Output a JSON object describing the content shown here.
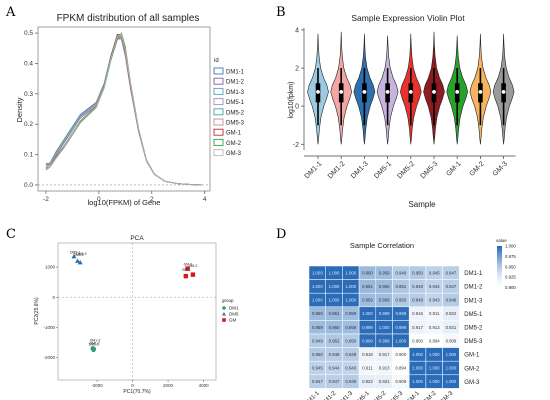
{
  "panels": {
    "a": "A",
    "b": "B",
    "c": "C",
    "d": "D"
  },
  "colors": {
    "DM1-1": "#3b74b4",
    "DM1-2": "#7b5ea7",
    "DM1-3": "#4ea3c9",
    "DM5-1": "#a48ad1",
    "DM5-2": "#3aa7a0",
    "DM5-3": "#c98a9a",
    "GM-1": "#c0282a",
    "GM-2": "#2ea34a",
    "GM-3": "#b8b8b8"
  },
  "chart_data": [
    {
      "type": "line",
      "title": "FPKM distribution of all samples",
      "xlabel": "log10(FPKM) of Gene",
      "ylabel": "Density",
      "xlim": [
        -2.3,
        4.2
      ],
      "ylim": [
        -0.02,
        0.52
      ],
      "xticks": [
        "-2",
        "0",
        "2",
        "4"
      ],
      "yticks": [
        "0.0",
        "0.1",
        "0.2",
        "0.3",
        "0.4",
        "0.5"
      ],
      "legend_title": "id",
      "legend_position": "right",
      "x": [
        -2.0,
        -1.85,
        -1.6,
        -1.3,
        -1.0,
        -0.7,
        -0.4,
        -0.1,
        0.2,
        0.45,
        0.7,
        0.85,
        1.0,
        1.2,
        1.5,
        1.8,
        2.1,
        2.5,
        3.0,
        3.5,
        3.9
      ],
      "series": [
        {
          "name": "DM1-1",
          "values": [
            0.07,
            0.07,
            0.11,
            0.15,
            0.19,
            0.23,
            0.25,
            0.27,
            0.33,
            0.42,
            0.49,
            0.485,
            0.43,
            0.32,
            0.18,
            0.08,
            0.035,
            0.012,
            0.004,
            0.001,
            0.0
          ]
        },
        {
          "name": "DM1-2",
          "values": [
            0.065,
            0.068,
            0.105,
            0.145,
            0.185,
            0.225,
            0.245,
            0.265,
            0.325,
            0.415,
            0.485,
            0.48,
            0.425,
            0.315,
            0.175,
            0.078,
            0.034,
            0.012,
            0.004,
            0.001,
            0.0
          ]
        },
        {
          "name": "DM1-3",
          "values": [
            0.06,
            0.066,
            0.1,
            0.14,
            0.18,
            0.22,
            0.24,
            0.26,
            0.32,
            0.41,
            0.48,
            0.48,
            0.43,
            0.32,
            0.18,
            0.08,
            0.035,
            0.012,
            0.004,
            0.001,
            0.0
          ]
        },
        {
          "name": "DM5-1",
          "values": [
            0.068,
            0.07,
            0.108,
            0.148,
            0.188,
            0.228,
            0.248,
            0.268,
            0.33,
            0.418,
            0.488,
            0.49,
            0.435,
            0.322,
            0.18,
            0.08,
            0.035,
            0.012,
            0.004,
            0.001,
            0.0
          ]
        },
        {
          "name": "DM5-2",
          "values": [
            0.07,
            0.072,
            0.112,
            0.152,
            0.192,
            0.232,
            0.252,
            0.272,
            0.335,
            0.425,
            0.495,
            0.49,
            0.435,
            0.322,
            0.18,
            0.08,
            0.035,
            0.012,
            0.004,
            0.001,
            0.0
          ]
        },
        {
          "name": "DM5-3",
          "values": [
            0.066,
            0.069,
            0.106,
            0.146,
            0.186,
            0.226,
            0.246,
            0.266,
            0.328,
            0.418,
            0.49,
            0.487,
            0.432,
            0.32,
            0.178,
            0.079,
            0.034,
            0.012,
            0.004,
            0.001,
            0.0
          ]
        },
        {
          "name": "GM-1",
          "values": [
            0.055,
            0.06,
            0.095,
            0.13,
            0.17,
            0.21,
            0.235,
            0.26,
            0.325,
            0.42,
            0.495,
            0.495,
            0.44,
            0.325,
            0.18,
            0.08,
            0.035,
            0.012,
            0.004,
            0.001,
            0.0
          ]
        },
        {
          "name": "GM-2",
          "values": [
            0.05,
            0.058,
            0.09,
            0.125,
            0.165,
            0.205,
            0.23,
            0.255,
            0.32,
            0.41,
            0.48,
            0.5,
            0.455,
            0.335,
            0.185,
            0.082,
            0.036,
            0.012,
            0.004,
            0.001,
            0.0
          ]
        },
        {
          "name": "GM-3",
          "values": [
            0.053,
            0.059,
            0.092,
            0.128,
            0.168,
            0.208,
            0.233,
            0.258,
            0.322,
            0.415,
            0.488,
            0.497,
            0.445,
            0.33,
            0.182,
            0.081,
            0.035,
            0.012,
            0.004,
            0.001,
            0.0
          ]
        }
      ]
    },
    {
      "type": "violin",
      "title": "Sample Expression Violin Plot",
      "xlabel": "Sample",
      "ylabel": "log10(fpkm)",
      "ylim": [
        -2.3,
        4.1
      ],
      "yticks": [
        "-2",
        "0",
        "2",
        "4"
      ],
      "categories": [
        "DM1-1",
        "DM1-2",
        "DM1-3",
        "DM5-1",
        "DM5-2",
        "DM5-3",
        "GM-1",
        "GM-2",
        "GM-3"
      ],
      "fills": [
        "#9ecae1",
        "#f4a6a6",
        "#2f6fb0",
        "#c7b3dd",
        "#e8322c",
        "#8e1b21",
        "#2ca02c",
        "#f7b35e",
        "#9a9a9a"
      ],
      "median": [
        0.75,
        0.75,
        0.75,
        0.75,
        0.75,
        0.75,
        0.75,
        0.75,
        0.75
      ],
      "q1": [
        0.2,
        0.2,
        0.2,
        0.2,
        0.2,
        0.2,
        0.2,
        0.2,
        0.2
      ],
      "q3": [
        1.2,
        1.2,
        1.2,
        1.2,
        1.2,
        1.2,
        1.2,
        1.2,
        1.2
      ],
      "whisker_low": [
        -1.0,
        -1.0,
        -1.0,
        -1.0,
        -1.0,
        -1.0,
        -1.0,
        -1.0,
        -1.0
      ],
      "whisker_high": [
        2.0,
        2.0,
        2.0,
        2.0,
        2.0,
        2.0,
        2.0,
        2.0,
        2.0
      ],
      "min": [
        -2.0,
        -2.0,
        -2.0,
        -2.0,
        -2.0,
        -2.0,
        -2.0,
        -2.0,
        -2.0
      ],
      "max": [
        3.8,
        3.9,
        3.8,
        3.7,
        3.8,
        3.9,
        3.7,
        3.8,
        3.8
      ]
    },
    {
      "type": "scatter",
      "title": "PCA",
      "xlabel": "PC1(70.7%)",
      "ylabel": "PC2(25.6%)",
      "xlim": [
        -4200,
        4700
      ],
      "ylim": [
        -2750,
        1800
      ],
      "xticks": [
        -2000,
        0,
        2000,
        4000
      ],
      "yticks": [
        -2000,
        -1000,
        0,
        1000
      ],
      "legend_title": "group",
      "legend_position": "right",
      "series": [
        {
          "name": "DM1",
          "color": "#2e9e6e",
          "marker": "circle",
          "points": [
            [
              -2250,
              -1700
            ],
            [
              -2200,
              -1750
            ],
            [
              -2180,
              -1720
            ]
          ]
        },
        {
          "name": "DM5",
          "color": "#2f6db5",
          "marker": "triangle",
          "points": [
            [
              -3300,
              1350
            ],
            [
              -3100,
              1200
            ],
            [
              -2950,
              1150
            ]
          ]
        },
        {
          "name": "GM",
          "color": "#d7191c",
          "marker": "square",
          "points": [
            [
              3100,
              950
            ],
            [
              3000,
              700
            ],
            [
              3400,
              750
            ]
          ]
        }
      ],
      "point_labels": [
        {
          "text": "DM1-1",
          "x": -2250,
          "y": -1700
        },
        {
          "text": "DM1-2",
          "x": -2200,
          "y": -1750
        },
        {
          "text": "DM1-3",
          "x": -2180,
          "y": -1720
        },
        {
          "text": "DM5-1",
          "x": -3300,
          "y": 1350
        },
        {
          "text": "DM5-2",
          "x": -3100,
          "y": 1200
        },
        {
          "text": "DM5-3",
          "x": -2950,
          "y": 1150
        },
        {
          "text": "GM-3",
          "x": 3100,
          "y": 950
        },
        {
          "text": "GM-1",
          "x": 3000,
          "y": 700
        },
        {
          "text": "GM-2",
          "x": 3400,
          "y": 750
        }
      ]
    },
    {
      "type": "heatmap",
      "title": "Sample Correlation",
      "row_labels": [
        "DM1-1",
        "DM1-2",
        "DM1-3",
        "DM5-1",
        "DM5-2",
        "DM5-3",
        "GM-1",
        "GM-2",
        "GM-3"
      ],
      "col_labels": [
        "DM1-1",
        "DM1-2",
        "DM1-3",
        "DM5-1",
        "DM5-2",
        "DM5-3",
        "GM-1",
        "GM-2",
        "GM-3"
      ],
      "matrix": [
        [
          1.0,
          1.0,
          1.0,
          0.96,
          0.959,
          0.949,
          0.95,
          0.945,
          0.947
        ],
        [
          1.0,
          1.0,
          1.0,
          0.961,
          0.96,
          0.952,
          0.948,
          0.944,
          0.947
        ],
        [
          1.0,
          1.0,
          1.0,
          0.959,
          0.959,
          0.95,
          0.949,
          0.943,
          0.949
        ],
        [
          0.96,
          0.961,
          0.959,
          1.0,
          0.999,
          0.999,
          0.916,
          0.911,
          0.922
        ],
        [
          0.959,
          0.96,
          0.959,
          0.999,
          1.0,
          0.999,
          0.917,
          0.913,
          0.921
        ],
        [
          0.949,
          0.952,
          0.95,
          0.999,
          0.999,
          1.0,
          0.9,
          0.894,
          0.909
        ],
        [
          0.95,
          0.948,
          0.949,
          0.916,
          0.917,
          0.9,
          1.0,
          1.0,
          1.0
        ],
        [
          0.945,
          0.944,
          0.943,
          0.911,
          0.913,
          0.894,
          1.0,
          1.0,
          1.0
        ],
        [
          0.947,
          0.947,
          0.949,
          0.922,
          0.921,
          0.909,
          1.0,
          1.0,
          1.0
        ]
      ],
      "cell_text": [
        [
          "1.000",
          "1.000",
          "1.000",
          "0.960",
          "0.959",
          "0.949",
          "0.950",
          "0.945",
          "0.947"
        ],
        [
          "1.000",
          "1.000",
          "1.000",
          "0.961",
          "0.960",
          "0.952",
          "0.948",
          "0.944",
          "0.947"
        ],
        [
          "1.000",
          "1.000",
          "1.000",
          "0.959",
          "0.959",
          "0.950",
          "0.949",
          "0.943",
          "0.949"
        ],
        [
          "0.960",
          "0.961",
          "0.959",
          "1.000",
          "0.999",
          "0.999",
          "0.916",
          "0.911",
          "0.922"
        ],
        [
          "0.959",
          "0.960",
          "0.959",
          "0.999",
          "1.000",
          "0.999",
          "0.917",
          "0.913",
          "0.921"
        ],
        [
          "0.949",
          "0.952",
          "0.950",
          "0.999",
          "0.999",
          "1.000",
          "0.900",
          "0.894",
          "0.909"
        ],
        [
          "0.950",
          "0.948",
          "0.949",
          "0.916",
          "0.917",
          "0.900",
          "1.000",
          "1.000",
          "1.000"
        ],
        [
          "0.945",
          "0.944",
          "0.943",
          "0.911",
          "0.913",
          "0.894",
          "1.000",
          "1.000",
          "1.000"
        ],
        [
          "0.947",
          "0.947",
          "0.949",
          "0.922",
          "0.921",
          "0.909",
          "1.000",
          "1.000",
          "1.000"
        ]
      ],
      "legend_title": "value",
      "legend_ticks": [
        "1.000",
        "0.975",
        "0.950",
        "0.925",
        "0.900"
      ],
      "legend_values": [
        1.0,
        0.975,
        0.95,
        0.925,
        0.9
      ],
      "color_low": "#ffffff",
      "color_high": "#2b6cb8",
      "vmin": 0.894,
      "vmax": 1.0
    }
  ]
}
